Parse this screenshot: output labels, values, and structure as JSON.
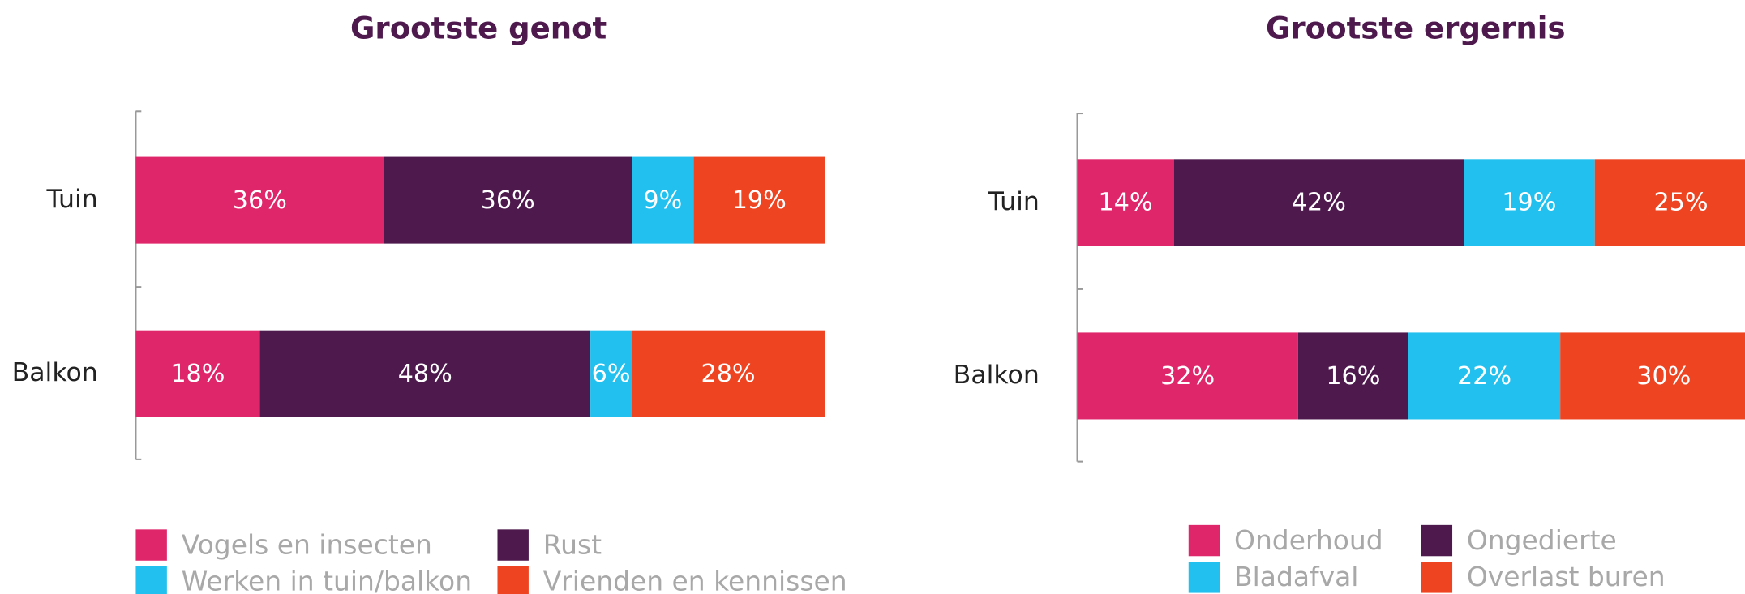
{
  "chart_data": [
    {
      "type": "stacked-bar",
      "title": "Grootste genot",
      "categories": [
        "Tuin",
        "Balkon"
      ],
      "xlim": [
        0,
        100
      ],
      "series": [
        {
          "name": "Vogels en insecten",
          "color": "#e0266b",
          "values": [
            36,
            18
          ],
          "value_labels": [
            "36%",
            "18%"
          ]
        },
        {
          "name": "Rust",
          "color": "#4e1a4e",
          "values": [
            36,
            48
          ],
          "value_labels": [
            "36%",
            "48%"
          ]
        },
        {
          "name": "Werken in tuin/balkon",
          "color": "#22c0ee",
          "values": [
            9,
            6
          ],
          "value_labels": [
            "9%",
            "6%"
          ]
        },
        {
          "name": "Vrienden en kennissen",
          "color": "#ee4422",
          "values": [
            19,
            28
          ],
          "value_labels": [
            "19%",
            "28%"
          ]
        }
      ]
    },
    {
      "type": "stacked-bar",
      "title": "Grootste ergernis",
      "categories": [
        "Tuin",
        "Balkon"
      ],
      "xlim": [
        0,
        100
      ],
      "series": [
        {
          "name": "Onderhoud",
          "color": "#e0266b",
          "values": [
            14,
            32
          ],
          "value_labels": [
            "14%",
            "32%"
          ]
        },
        {
          "name": "Ongedierte",
          "color": "#4e1a4e",
          "values": [
            42,
            16
          ],
          "value_labels": [
            "42%",
            "16%"
          ]
        },
        {
          "name": "Bladafval",
          "color": "#22c0ee",
          "values": [
            19,
            22
          ],
          "value_labels": [
            "19%",
            "22%"
          ]
        },
        {
          "name": "Overlast buren",
          "color": "#ee4422",
          "values": [
            25,
            30
          ],
          "value_labels": [
            "25%",
            "30%"
          ]
        }
      ]
    }
  ]
}
